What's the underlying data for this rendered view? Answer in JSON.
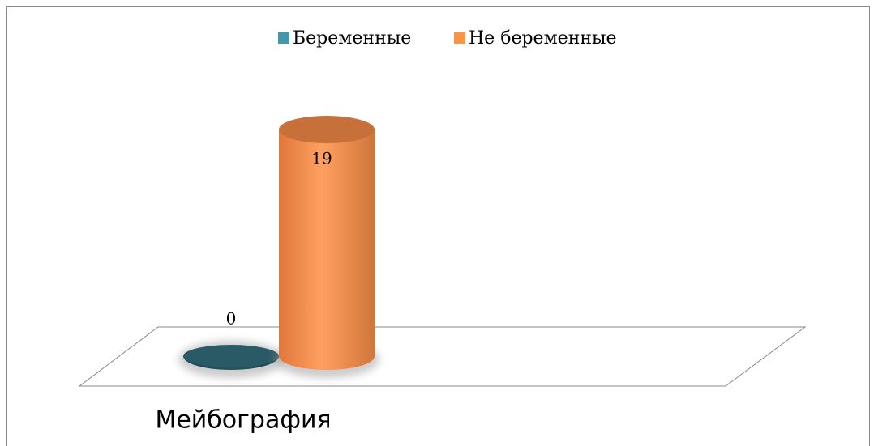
{
  "chart_data": {
    "type": "bar",
    "categories": [
      "Мейбография"
    ],
    "series": [
      {
        "name": "Беременные",
        "color": "#4198af",
        "values": [
          0
        ]
      },
      {
        "name": "Не беременные",
        "color": "#f79646",
        "values": [
          19
        ]
      }
    ],
    "legend": "top"
  }
}
